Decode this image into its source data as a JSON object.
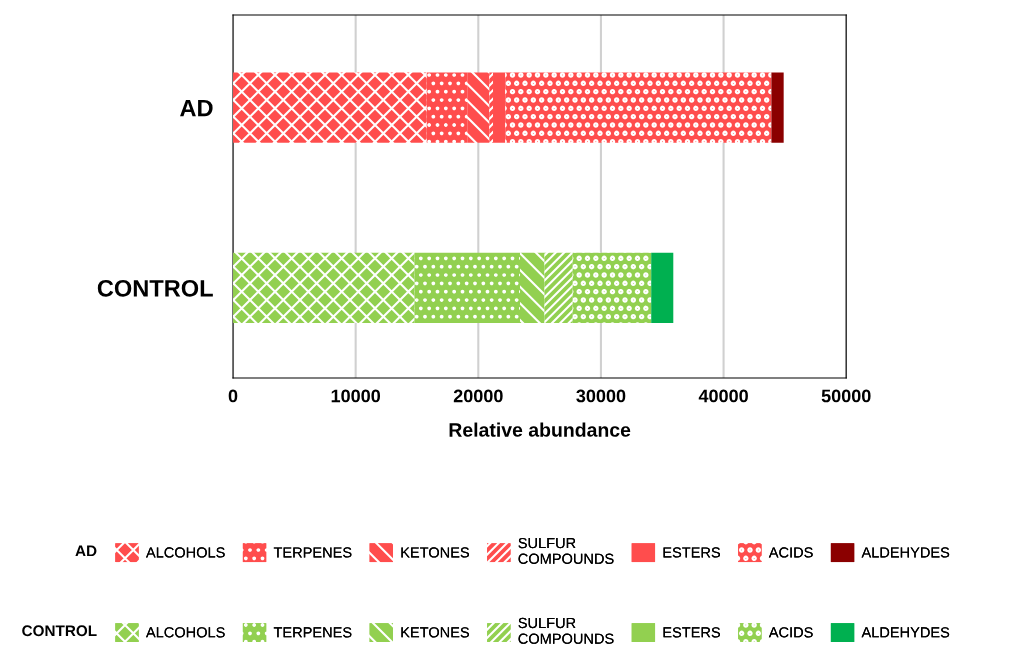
{
  "chart_data": {
    "type": "bar",
    "orientation": "horizontal",
    "stacked": true,
    "categories": [
      "AD",
      "CONTROL"
    ],
    "series": [
      {
        "name": "ALCOHOLS",
        "colors": [
          "#ff4d4d",
          "#92d050"
        ],
        "values": [
          15800,
          14800
        ]
      },
      {
        "name": "TERPENES",
        "colors": [
          "#ff4d4d",
          "#92d050"
        ],
        "values": [
          3300,
          8600
        ]
      },
      {
        "name": "KETONES",
        "colors": [
          "#ff4d4d",
          "#92d050"
        ],
        "values": [
          1800,
          2000
        ]
      },
      {
        "name": "SULFUR\nCOMPOUNDS",
        "colors": [
          "#ff4d4d",
          "#92d050"
        ],
        "values": [
          300,
          2300
        ]
      },
      {
        "name": "ESTERS",
        "colors": [
          "#ff4d4d",
          "#92d050"
        ],
        "values": [
          1000,
          0
        ]
      },
      {
        "name": "ACIDS",
        "colors": [
          "#ff4d4d",
          "#92d050"
        ],
        "values": [
          21700,
          6400
        ]
      },
      {
        "name": "ALDEHYDES",
        "colors": [
          "#8b0000",
          "#00b050"
        ],
        "values": [
          1000,
          1800
        ]
      }
    ],
    "xlabel": "Relative abundance",
    "xlim": [
      0,
      50000
    ],
    "xticks": [
      0,
      10000,
      20000,
      30000,
      40000,
      50000
    ],
    "grid": "x",
    "legend": "bottom"
  }
}
